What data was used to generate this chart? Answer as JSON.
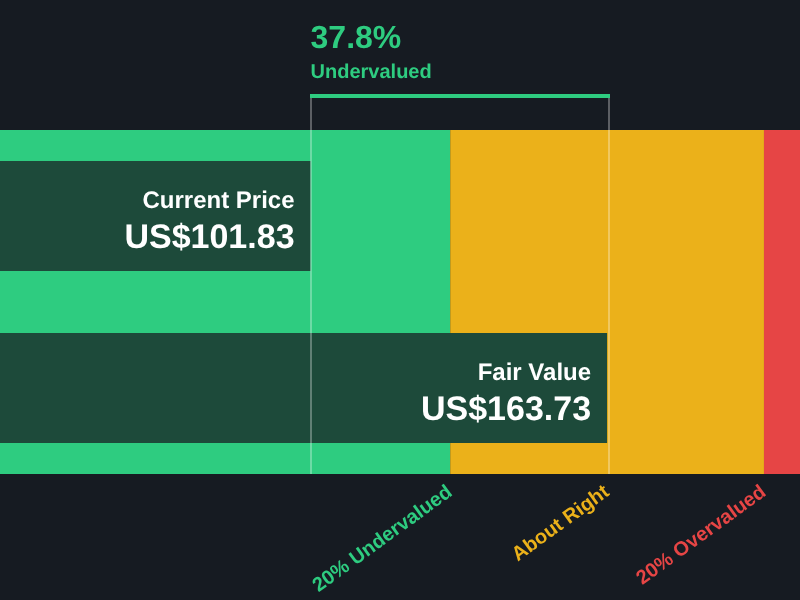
{
  "chart_data": {
    "type": "bar",
    "orientation": "horizontal",
    "categories": [
      "Current Price",
      "Fair Value"
    ],
    "values": [
      101.83,
      163.73
    ],
    "value_labels": [
      "US$101.83",
      "US$163.73"
    ],
    "color": "#1d4a3a",
    "xlim": [
      37,
      204
    ],
    "bands": [
      {
        "axis": "x",
        "from": 37,
        "to": 130.98,
        "label": "20% Undervalued",
        "color": "#2ecc80"
      },
      {
        "axis": "x",
        "from": 130.98,
        "to": 196.48,
        "label": "About Right",
        "color": "#ebb11a"
      },
      {
        "axis": "x",
        "from": 196.48,
        "to": 204,
        "label": "20% Overvalued",
        "color": "#e64545"
      }
    ],
    "ref_lines": [
      {
        "axis": "x",
        "value": 101.83
      },
      {
        "axis": "x",
        "value": 163.73
      }
    ],
    "annotations": [
      "37.8%",
      "Undervalued"
    ],
    "legend": false
  }
}
